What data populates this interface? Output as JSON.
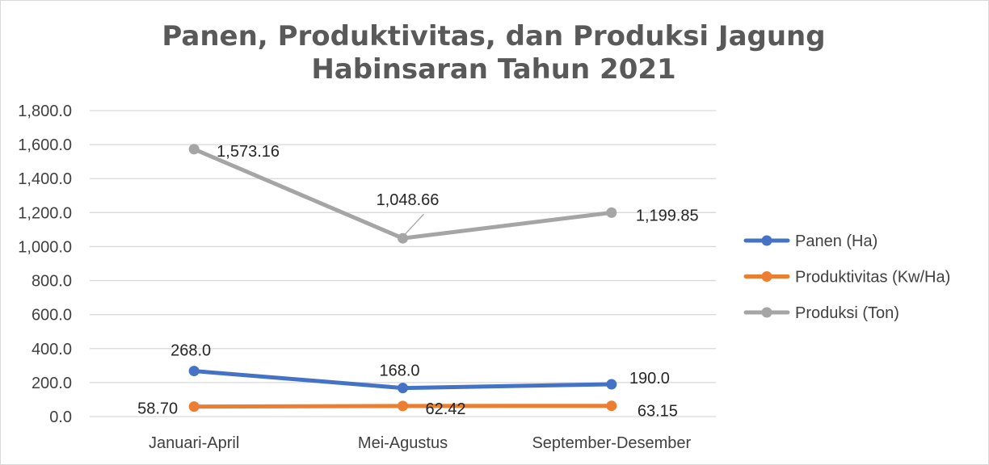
{
  "chart_data": {
    "type": "line",
    "title_lines": [
      "Panen, Produktivitas, dan Produksi Jagung",
      "Habinsaran Tahun 2021"
    ],
    "categories": [
      "Januari-April",
      "Mei-Agustus",
      "September-Desember"
    ],
    "ylim": [
      0,
      1800
    ],
    "yticks": [
      0,
      200,
      400,
      600,
      800,
      1000,
      1200,
      1400,
      1600,
      1800
    ],
    "ytick_labels": [
      "0.0",
      "200.0",
      "400.0",
      "600.0",
      "800.0",
      "1,000.0",
      "1,200.0",
      "1,400.0",
      "1,600.0",
      "1,800.0"
    ],
    "grid": true,
    "legend_position": "right",
    "series": [
      {
        "name": "Panen (Ha)",
        "color": "#4472c4",
        "values": [
          268.0,
          168.0,
          190.0
        ],
        "labels": [
          "268.0",
          "168.0",
          "190.0"
        ]
      },
      {
        "name": "Produktivitas (Kw/Ha)",
        "color": "#ed7d31",
        "values": [
          58.7,
          62.42,
          63.15
        ],
        "labels": [
          "58.70",
          "62.42",
          "63.15"
        ]
      },
      {
        "name": "Produksi (Ton)",
        "color": "#a5a5a5",
        "values": [
          1573.16,
          1048.66,
          1199.85
        ],
        "labels": [
          "1,573.16",
          "1,048.66",
          "1,199.85"
        ]
      }
    ]
  }
}
